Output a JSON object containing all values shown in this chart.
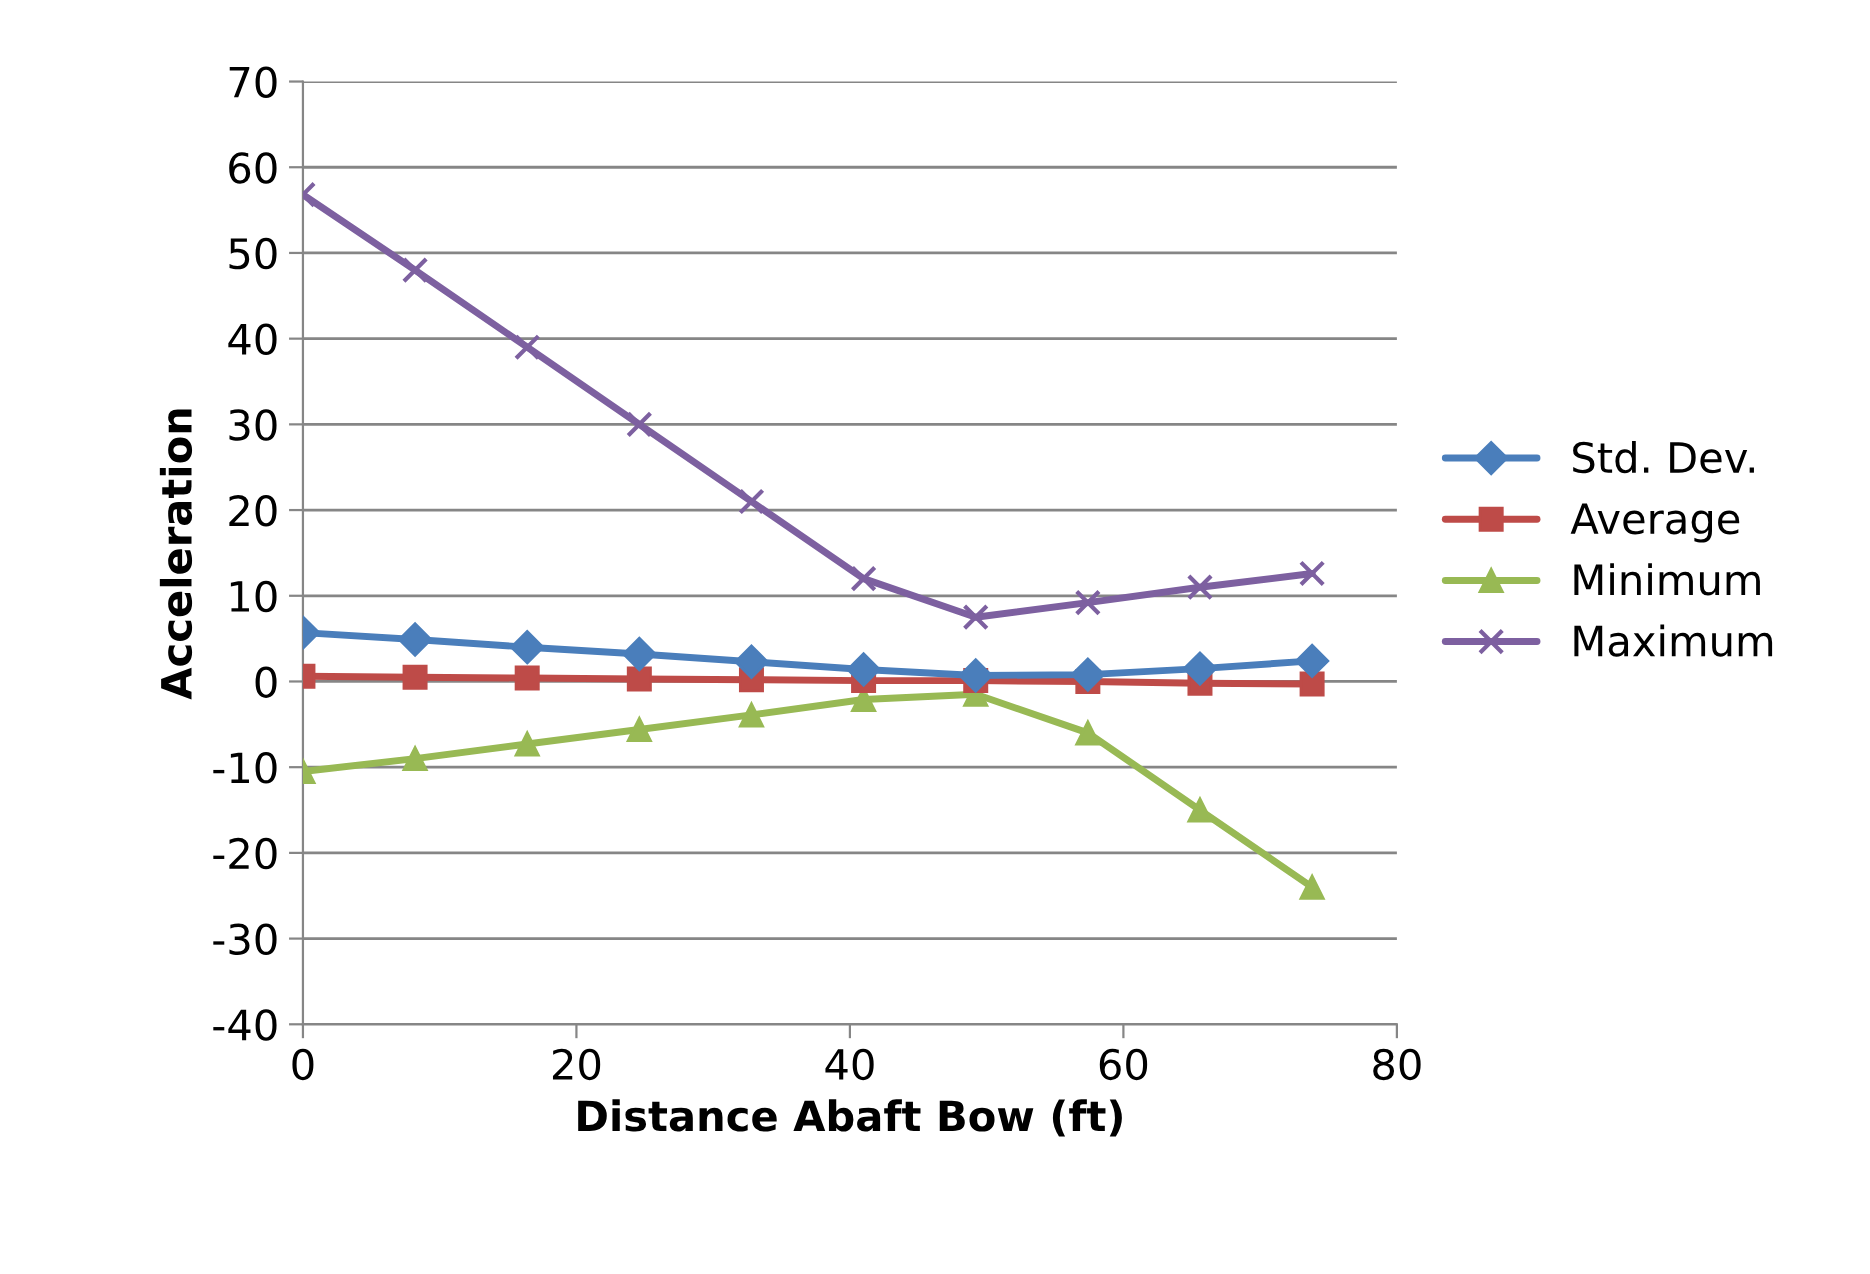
{
  "chart_data": {
    "type": "line",
    "xlabel": "Distance Abaft Bow (ft)",
    "ylabel": "Acceleration",
    "x": [
      0,
      8.2,
      16.4,
      24.6,
      32.8,
      41,
      49.2,
      57.4,
      65.6,
      73.8
    ],
    "series": [
      {
        "name": "Std. Dev.",
        "color": "#4a7ebb",
        "marker": "diamond",
        "values": [
          5.7,
          4.9,
          4.0,
          3.2,
          2.3,
          1.4,
          0.7,
          0.8,
          1.5,
          2.4
        ]
      },
      {
        "name": "Average",
        "color": "#be4b48",
        "marker": "square",
        "values": [
          0.6,
          0.5,
          0.4,
          0.3,
          0.2,
          0.1,
          0.1,
          0,
          -0.2,
          -0.3
        ]
      },
      {
        "name": "Minimum",
        "color": "#98b954",
        "marker": "triangle",
        "values": [
          -10.5,
          -9,
          -7.3,
          -5.6,
          -3.9,
          -2.1,
          -1.5,
          -6,
          -15,
          -24
        ]
      },
      {
        "name": "Maximum",
        "color": "#7d60a0",
        "marker": "cross",
        "values": [
          56.8,
          48,
          39,
          30,
          21,
          12,
          7.5,
          9.2,
          11,
          12.6
        ]
      }
    ],
    "xlim": [
      0,
      80
    ],
    "xticks": [
      0,
      20,
      40,
      60,
      80
    ],
    "ylim": [
      -40,
      70
    ],
    "yticks": [
      -40,
      -30,
      -20,
      -10,
      0,
      10,
      20,
      30,
      40,
      50,
      60,
      70
    ],
    "grid": "y",
    "legend": "right",
    "line_style": "solid"
  }
}
